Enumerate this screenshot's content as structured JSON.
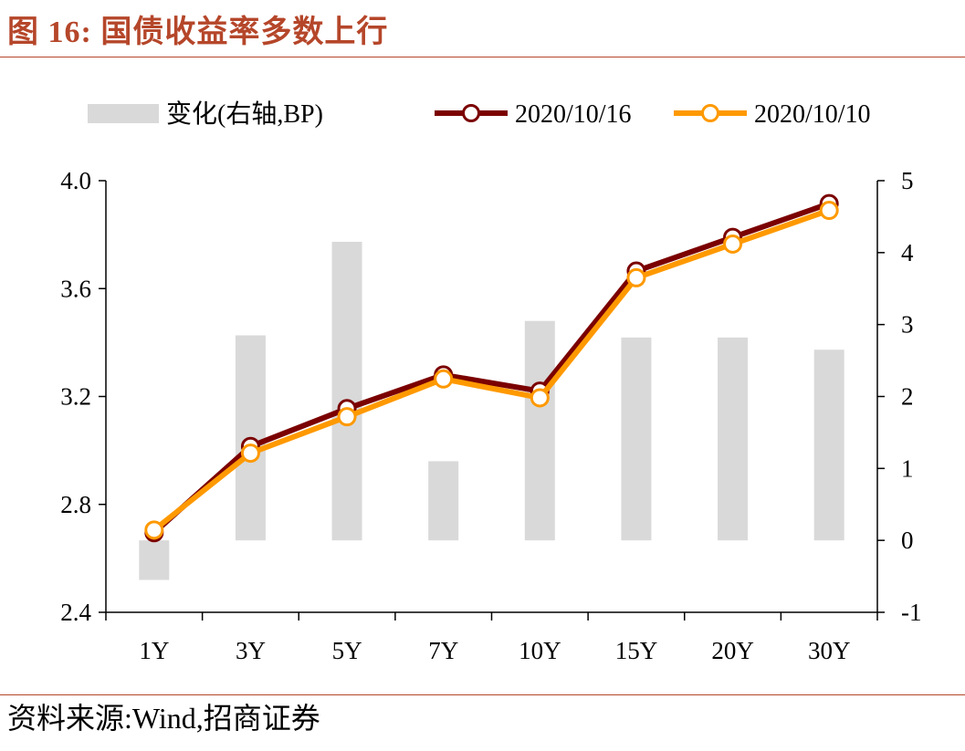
{
  "figure": {
    "title": "图 16:  国债收益率多数上行",
    "source": "资料来源:Wind,招商证券"
  },
  "chart_data": {
    "type": "bar+line",
    "categories": [
      "1Y",
      "3Y",
      "5Y",
      "7Y",
      "10Y",
      "15Y",
      "20Y",
      "30Y"
    ],
    "series": [
      {
        "name": "变化(右轴,BP)",
        "type": "bar",
        "axis": "right",
        "color": "#d9d9d9",
        "values": [
          -0.55,
          2.85,
          4.15,
          1.1,
          3.05,
          2.82,
          2.82,
          2.65
        ]
      },
      {
        "name": "2020/10/16",
        "type": "line",
        "axis": "left",
        "color": "#7b0000",
        "values": [
          2.695,
          3.015,
          3.155,
          3.28,
          3.22,
          3.665,
          3.79,
          3.915
        ]
      },
      {
        "name": "2020/10/10",
        "type": "line",
        "axis": "left",
        "color": "#ff9900",
        "values": [
          2.705,
          2.99,
          3.125,
          3.265,
          3.195,
          3.64,
          3.765,
          3.89
        ]
      }
    ],
    "left_axis": {
      "ylim": [
        2.4,
        4.0
      ],
      "ticks": [
        "2.4",
        "2.8",
        "3.2",
        "3.6",
        "4.0"
      ]
    },
    "right_axis": {
      "ylim": [
        -1,
        5
      ],
      "ticks": [
        "-1",
        "0",
        "1",
        "2",
        "3",
        "4",
        "5"
      ]
    },
    "legend_position": "top",
    "grid": false
  }
}
